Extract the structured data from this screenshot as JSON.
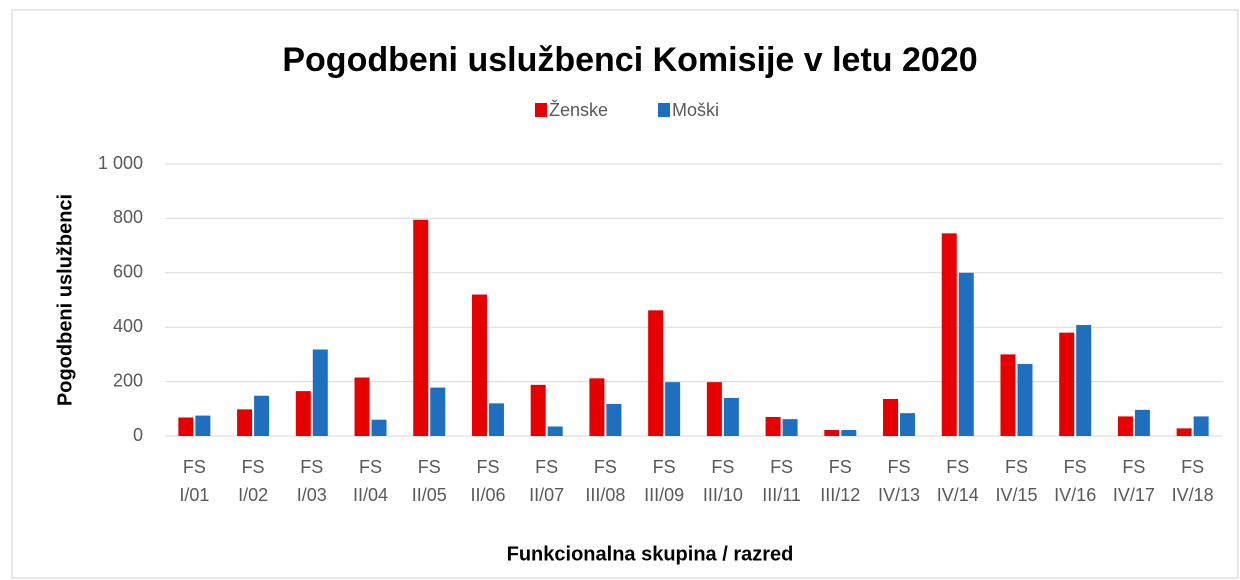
{
  "chart_data": {
    "type": "bar",
    "title": "Pogodbeni uslužbenci Komisije v letu 2020",
    "x_label": "Funkcionalna skupina / razred",
    "y_label": "Pogodbeni uslužbenci",
    "categories": [
      "FS I/01",
      "FS I/02",
      "FS I/03",
      "FS II/04",
      "FS II/05",
      "FS II/06",
      "FS II/07",
      "FS III/08",
      "FS III/09",
      "FS III/10",
      "FS III/11",
      "FS III/12",
      "FS IV/13",
      "FS IV/14",
      "FS IV/15",
      "FS IV/16",
      "FS IV/17",
      "FS IV/18"
    ],
    "series": [
      {
        "name": "Ženske",
        "color": "#e60000",
        "values": [
          68,
          98,
          165,
          215,
          795,
          520,
          188,
          212,
          462,
          198,
          70,
          22,
          136,
          745,
          300,
          380,
          72,
          28
        ]
      },
      {
        "name": "Moški",
        "color": "#1f6fc0",
        "values": [
          75,
          148,
          318,
          60,
          178,
          120,
          35,
          118,
          198,
          140,
          62,
          22,
          84,
          600,
          265,
          408,
          96,
          72
        ]
      }
    ],
    "ylim": [
      0,
      1000
    ],
    "yticks": [
      0,
      200,
      400,
      600,
      800,
      {
        "value": 1000,
        "label": "1 000"
      }
    ],
    "grid": true,
    "legend": "top"
  }
}
